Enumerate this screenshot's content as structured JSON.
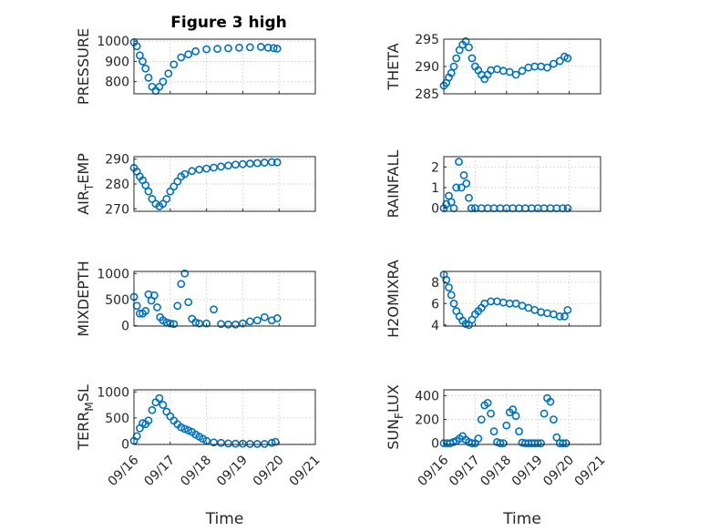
{
  "figure": {
    "title": "Figure 3 high"
  },
  "colors": {
    "marker": "#0072bd",
    "grid": "#cfcfcf",
    "axes": "#262626"
  },
  "chart_data": [
    {
      "type": "scatter",
      "ylabel": "PRESSURE",
      "ylabel_sub": "",
      "ylim": [
        740,
        1010
      ],
      "yticks": [
        800,
        900,
        1000
      ],
      "xlim": [
        0,
        5
      ],
      "grid": true,
      "xticklabels": [],
      "xlabel": "",
      "x": [
        0,
        0.08,
        0.16,
        0.24,
        0.32,
        0.4,
        0.5,
        0.6,
        0.7,
        0.8,
        0.95,
        1.1,
        1.3,
        1.5,
        1.7,
        2.0,
        2.3,
        2.6,
        2.9,
        3.2,
        3.5,
        3.7,
        3.85,
        3.95
      ],
      "y": [
        995,
        975,
        930,
        900,
        865,
        820,
        775,
        755,
        775,
        800,
        840,
        885,
        920,
        935,
        950,
        960,
        962,
        965,
        968,
        970,
        972,
        968,
        966,
        963
      ]
    },
    {
      "type": "scatter",
      "ylabel": "THETA",
      "ylabel_sub": "",
      "ylim": [
        285,
        295
      ],
      "yticks": [
        285,
        290,
        295
      ],
      "xlim": [
        0,
        5
      ],
      "grid": true,
      "xticklabels": [],
      "xlabel": "",
      "x": [
        0,
        0.08,
        0.16,
        0.24,
        0.32,
        0.4,
        0.5,
        0.6,
        0.7,
        0.8,
        0.9,
        1.0,
        1.1,
        1.2,
        1.3,
        1.4,
        1.5,
        1.7,
        1.9,
        2.1,
        2.3,
        2.5,
        2.7,
        2.9,
        3.1,
        3.3,
        3.5,
        3.7,
        3.85,
        3.95
      ],
      "y": [
        286.5,
        287,
        288,
        288.8,
        290,
        291.5,
        293,
        294,
        294.6,
        293.5,
        291.5,
        290,
        289.3,
        288.5,
        287.7,
        288.5,
        289.3,
        289.5,
        289.2,
        289,
        288.5,
        289.2,
        289.8,
        290,
        290,
        289.8,
        290.5,
        291,
        291.8,
        291.5
      ]
    },
    {
      "type": "scatter",
      "ylabel": "AIR",
      "ylabel_sub": "T",
      "ylabel_rest": "EMP",
      "ylim": [
        269,
        291
      ],
      "yticks": [
        270,
        280,
        290
      ],
      "xlim": [
        0,
        5
      ],
      "grid": true,
      "xticklabels": [],
      "xlabel": "",
      "x": [
        0,
        0.08,
        0.16,
        0.24,
        0.32,
        0.4,
        0.5,
        0.6,
        0.7,
        0.8,
        0.9,
        1.0,
        1.1,
        1.2,
        1.3,
        1.4,
        1.6,
        1.8,
        2.0,
        2.2,
        2.4,
        2.6,
        2.8,
        3.0,
        3.2,
        3.4,
        3.6,
        3.8,
        3.95
      ],
      "y": [
        286.5,
        285,
        283,
        281.5,
        279.5,
        277,
        274,
        272,
        271,
        272,
        274,
        277,
        279,
        281,
        283,
        284,
        285.2,
        285.8,
        286.2,
        286.6,
        287,
        287.4,
        287.8,
        288,
        288.2,
        288.4,
        288.6,
        288.8,
        288.7
      ]
    },
    {
      "type": "scatter",
      "ylabel": "RAINFALL",
      "ylabel_sub": "",
      "ylim": [
        -0.15,
        2.5
      ],
      "yticks": [
        0,
        1,
        2
      ],
      "xlim": [
        0,
        5
      ],
      "grid": true,
      "xticklabels": [],
      "xlabel": "",
      "x": [
        0,
        0.08,
        0.16,
        0.24,
        0.32,
        0.4,
        0.48,
        0.56,
        0.64,
        0.72,
        0.8,
        0.88,
        1.0,
        1.2,
        1.4,
        1.6,
        1.8,
        2.0,
        2.2,
        2.4,
        2.6,
        2.8,
        3.0,
        3.2,
        3.4,
        3.6,
        3.8,
        3.95
      ],
      "y": [
        0,
        0.2,
        0.6,
        0.3,
        0,
        1.0,
        2.25,
        1.0,
        1.6,
        1.2,
        0.5,
        0,
        0,
        0,
        0,
        0,
        0,
        0,
        0,
        0,
        0,
        0,
        0,
        0,
        0,
        0,
        0,
        0
      ]
    },
    {
      "type": "scatter",
      "ylabel": "MIXDEPTH",
      "ylabel_sub": "",
      "ylim": [
        -10,
        1040
      ],
      "yticks": [
        0,
        500,
        1000
      ],
      "xlim": [
        0,
        5
      ],
      "grid": true,
      "xticklabels": [],
      "xlabel": "",
      "x": [
        0,
        0.08,
        0.16,
        0.24,
        0.32,
        0.4,
        0.48,
        0.56,
        0.64,
        0.72,
        0.8,
        0.9,
        1.0,
        1.1,
        1.2,
        1.3,
        1.4,
        1.5,
        1.6,
        1.7,
        1.8,
        2.0,
        2.2,
        2.4,
        2.6,
        2.8,
        3.0,
        3.2,
        3.4,
        3.6,
        3.8,
        3.95
      ],
      "y": [
        550,
        380,
        230,
        230,
        280,
        600,
        480,
        580,
        350,
        160,
        100,
        60,
        40,
        30,
        380,
        800,
        1000,
        450,
        130,
        60,
        40,
        40,
        310,
        30,
        20,
        20,
        40,
        80,
        100,
        160,
        100,
        140
      ]
    },
    {
      "type": "scatter",
      "ylabel": "H2OMIXRA",
      "ylabel_sub": "",
      "ylim": [
        3.9,
        9.0
      ],
      "yticks": [
        4,
        6,
        8
      ],
      "xlim": [
        0,
        5
      ],
      "grid": true,
      "xticklabels": [],
      "xlabel": "",
      "x": [
        0,
        0.08,
        0.16,
        0.24,
        0.32,
        0.4,
        0.5,
        0.6,
        0.7,
        0.8,
        0.9,
        1.0,
        1.1,
        1.2,
        1.3,
        1.5,
        1.7,
        1.9,
        2.1,
        2.3,
        2.5,
        2.7,
        2.9,
        3.1,
        3.3,
        3.5,
        3.7,
        3.85,
        3.95
      ],
      "y": [
        8.7,
        8.2,
        7.5,
        6.8,
        6.0,
        5.3,
        4.8,
        4.4,
        4.1,
        4.0,
        4.5,
        5.0,
        5.3,
        5.6,
        6.0,
        6.2,
        6.2,
        6.1,
        6.0,
        6.0,
        5.8,
        5.6,
        5.4,
        5.2,
        5.1,
        5.0,
        4.8,
        4.8,
        5.4
      ]
    },
    {
      "type": "scatter",
      "ylabel": "TERR",
      "ylabel_sub": "M",
      "ylabel_rest": "SL",
      "ylim": [
        -10,
        1040
      ],
      "yticks": [
        0,
        500,
        1000
      ],
      "xlim": [
        0,
        5
      ],
      "grid": true,
      "xticklabels": [
        "09/16",
        "09/17",
        "09/18",
        "09/19",
        "09/20",
        "09/21"
      ],
      "xlabel": "Time",
      "x": [
        0,
        0.08,
        0.16,
        0.24,
        0.32,
        0.4,
        0.5,
        0.6,
        0.7,
        0.8,
        0.9,
        1.0,
        1.1,
        1.2,
        1.3,
        1.4,
        1.5,
        1.6,
        1.7,
        1.8,
        1.9,
        2.0,
        2.2,
        2.4,
        2.6,
        2.8,
        3.0,
        3.2,
        3.4,
        3.6,
        3.8,
        3.9
      ],
      "y": [
        60,
        150,
        300,
        400,
        380,
        450,
        650,
        800,
        880,
        750,
        620,
        530,
        450,
        380,
        320,
        290,
        260,
        230,
        180,
        140,
        100,
        60,
        30,
        20,
        10,
        5,
        5,
        0,
        0,
        0,
        20,
        40
      ]
    },
    {
      "type": "scatter",
      "ylabel": "SUN",
      "ylabel_sub": "F",
      "ylabel_rest": "LUX",
      "ylim": [
        -10,
        450
      ],
      "yticks": [
        0,
        200,
        400
      ],
      "xlim": [
        0,
        5
      ],
      "grid": true,
      "xticklabels": [
        "09/16",
        "09/17",
        "09/18",
        "09/19",
        "09/20",
        "09/21"
      ],
      "xlabel": "Time",
      "x": [
        0,
        0.1,
        0.2,
        0.3,
        0.4,
        0.5,
        0.6,
        0.7,
        0.8,
        0.9,
        1.0,
        1.1,
        1.2,
        1.3,
        1.4,
        1.5,
        1.6,
        1.7,
        1.8,
        1.9,
        2.0,
        2.1,
        2.2,
        2.3,
        2.4,
        2.5,
        2.6,
        2.7,
        2.8,
        2.9,
        3.0,
        3.1,
        3.2,
        3.3,
        3.4,
        3.5,
        3.6,
        3.7,
        3.8,
        3.9
      ],
      "y": [
        0,
        0,
        0,
        10,
        20,
        40,
        60,
        30,
        10,
        0,
        0,
        40,
        200,
        320,
        340,
        250,
        100,
        10,
        0,
        0,
        150,
        260,
        285,
        230,
        100,
        5,
        0,
        0,
        0,
        0,
        0,
        0,
        250,
        380,
        350,
        200,
        50,
        0,
        0,
        0
      ]
    }
  ]
}
